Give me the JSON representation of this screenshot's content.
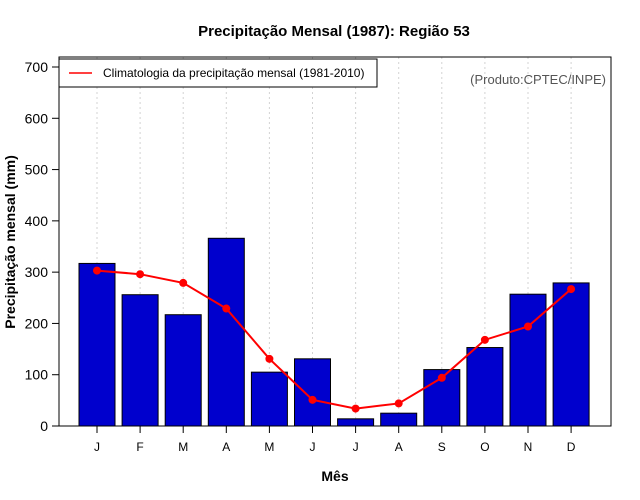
{
  "chart_data": {
    "type": "bar",
    "title": "Precipitação Mensal (1987): Região 53",
    "xlabel": "Mês",
    "ylabel": "Precipitação mensal (mm)",
    "ylim": [
      0,
      700
    ],
    "yticks": [
      0,
      100,
      200,
      300,
      400,
      500,
      600,
      700
    ],
    "grid": true,
    "categories": [
      "J",
      "F",
      "M",
      "A",
      "M",
      "J",
      "J",
      "A",
      "S",
      "O",
      "N",
      "D"
    ],
    "series": [
      {
        "name": "Precipitação mensal (1987)",
        "type": "bar",
        "color": "#0000CD",
        "values": [
          317,
          256,
          217,
          366,
          105,
          131,
          14,
          25,
          110,
          153,
          257,
          279
        ]
      },
      {
        "name": "Climatologia da precipitação mensal (1981-2010)",
        "type": "line",
        "color": "#FF0000",
        "values": [
          303,
          296,
          279,
          229,
          131,
          51,
          34,
          44,
          94,
          168,
          194,
          267
        ]
      }
    ],
    "legend": {
      "position": "top-left",
      "entries": [
        "Climatologia da precipitação mensal (1981-2010)"
      ]
    },
    "annotation": "(Produto:CPTEC/INPE)"
  }
}
